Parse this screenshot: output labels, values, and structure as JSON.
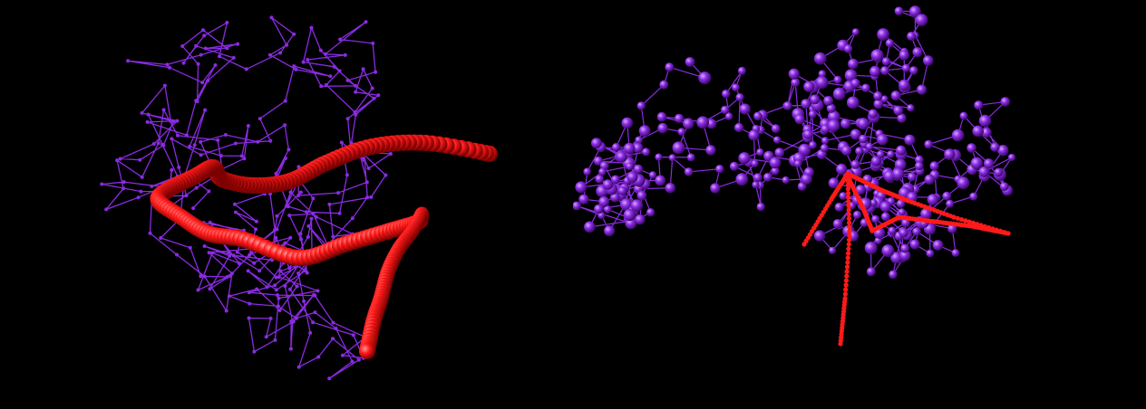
{
  "scene": {
    "background": "#000000",
    "backbone_color": "#8a2be2",
    "highlight_color": "#ff1a1a",
    "panels": [
      {
        "name": "stick-model",
        "style": "trace"
      },
      {
        "name": "ball-and-stick-model",
        "style": "spheres"
      }
    ]
  }
}
